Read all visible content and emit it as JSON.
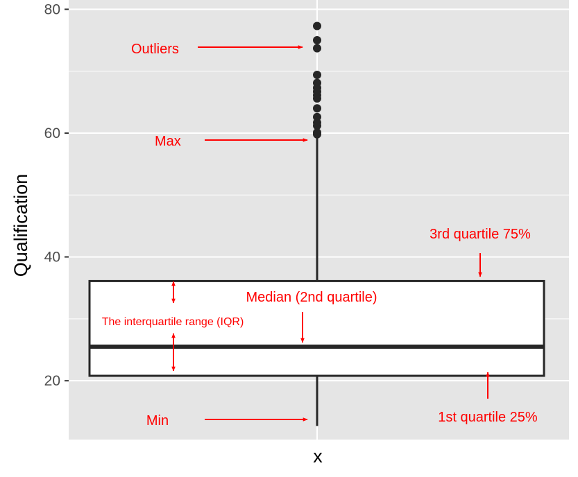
{
  "colors": {
    "panel": "#e5e5e5",
    "grid": "#ffffff",
    "box_stroke": "#262626",
    "box_fill": "#ffffff",
    "annotation": "#ff0000",
    "tick_text": "#4d4d4d"
  },
  "chart_data": {
    "type": "boxplot",
    "xlabel": "x",
    "ylabel": "Qualification",
    "ylim": [
      10.5,
      81.5
    ],
    "y_ticks": [
      20,
      40,
      60,
      80
    ],
    "y_tick_labels": [
      "20",
      "40",
      "60",
      "80"
    ],
    "grid": true,
    "series": [
      {
        "min": 12.7,
        "q1": 20.8,
        "median": 25.5,
        "q3": 36.1,
        "max": 59.9,
        "outliers": [
          77.3,
          75.0,
          73.7,
          69.4,
          68.1,
          67.3,
          66.7,
          66.1,
          65.6,
          64.0,
          62.6,
          61.7,
          61.2,
          60.1,
          59.8
        ]
      }
    ],
    "annotations": {
      "outliers": "Outliers",
      "max": "Max",
      "q3": "3rd quartile 75%",
      "median": "Median (2nd quartile)",
      "iqr": "The interquartile range (IQR)",
      "q1": "1st quartile 25%",
      "min": "Min"
    }
  }
}
